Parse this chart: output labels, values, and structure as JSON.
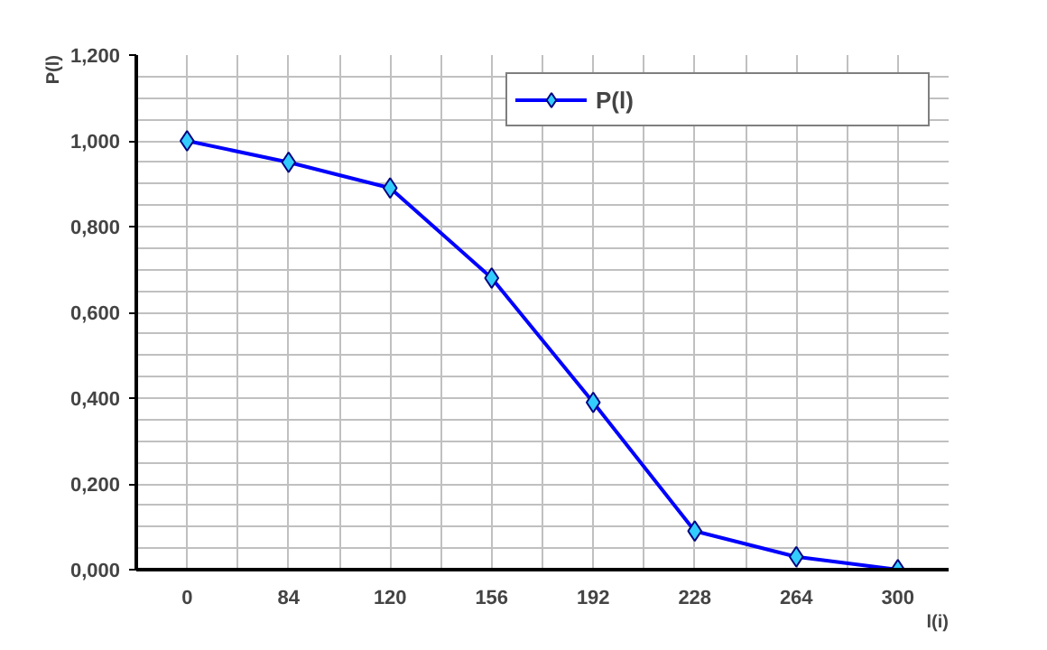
{
  "chart_data": {
    "type": "line",
    "xlabel": "l(i)",
    "ylabel": "P(l)",
    "categories": [
      "0",
      "84",
      "120",
      "156",
      "192",
      "228",
      "264",
      "300"
    ],
    "series": [
      {
        "name": "P(l)",
        "color": "#0000ff",
        "values": [
          1.0,
          0.95,
          0.89,
          0.68,
          0.39,
          0.09,
          0.03,
          0.0
        ]
      }
    ],
    "ylim": [
      0,
      1.2
    ],
    "yticks": [
      {
        "value": 0,
        "label": "0,000"
      },
      {
        "value": 0.2,
        "label": "0,200"
      },
      {
        "value": 0.4,
        "label": "0,400"
      },
      {
        "value": 0.6,
        "label": "0,600"
      },
      {
        "value": 0.8,
        "label": "0,800"
      },
      {
        "value": 1.0,
        "label": "1,000"
      },
      {
        "value": 1.2,
        "label": "1,200"
      }
    ],
    "grid": true,
    "legend": "top right",
    "marker": "diamond",
    "line_style": "solid"
  }
}
